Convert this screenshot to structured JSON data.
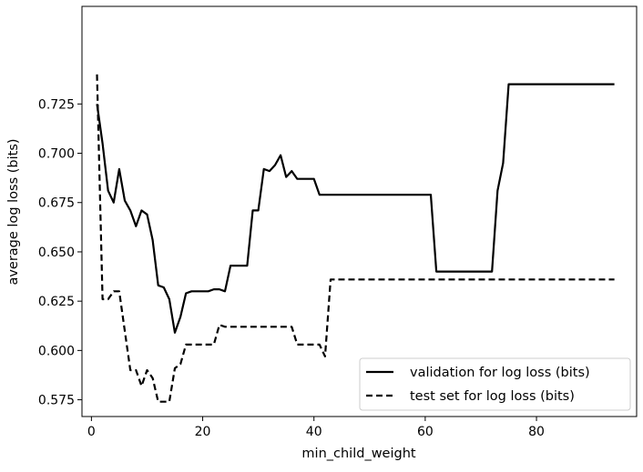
{
  "chart_data": {
    "type": "line",
    "xlabel": "min_child_weight",
    "ylabel": "average log loss (bits)",
    "xlim": [
      -1.7,
      98
    ],
    "ylim": [
      0.5665,
      0.7745
    ],
    "xticks": [
      0,
      20,
      40,
      60,
      80
    ],
    "xtick_labels": [
      "0",
      "20",
      "40",
      "60",
      "80"
    ],
    "yticks": [
      0.575,
      0.6,
      0.625,
      0.65,
      0.675,
      0.7,
      0.725
    ],
    "ytick_labels": [
      "0.575",
      "0.600",
      "0.625",
      "0.650",
      "0.675",
      "0.700",
      "0.725"
    ],
    "grid": false,
    "legend_position": "bottom-right",
    "series": [
      {
        "name": "validation for log loss (bits)",
        "style": "solid",
        "color": "#000000",
        "x": [
          1,
          2,
          3,
          4,
          5,
          6,
          7,
          8,
          9,
          10,
          11,
          12,
          13,
          14,
          15,
          16,
          17,
          18,
          19,
          20,
          21,
          22,
          23,
          24,
          25,
          26,
          27,
          28,
          29,
          30,
          31,
          32,
          33,
          34,
          35,
          36,
          37,
          38,
          39,
          40,
          41,
          42,
          43,
          44,
          45,
          46,
          47,
          48,
          49,
          50,
          51,
          52,
          53,
          54,
          55,
          56,
          57,
          58,
          59,
          60,
          61,
          62,
          63,
          64,
          65,
          66,
          67,
          68,
          69,
          70,
          71,
          72,
          73,
          74,
          75,
          76,
          77,
          78,
          79,
          80,
          81,
          82,
          83,
          84,
          85,
          86,
          87,
          88,
          89,
          90,
          91,
          92,
          93,
          94
        ],
        "values": [
          0.725,
          0.705,
          0.681,
          0.675,
          0.692,
          0.676,
          0.671,
          0.663,
          0.671,
          0.669,
          0.656,
          0.633,
          0.632,
          0.626,
          0.609,
          0.617,
          0.629,
          0.63,
          0.63,
          0.63,
          0.63,
          0.631,
          0.631,
          0.63,
          0.643,
          0.643,
          0.643,
          0.643,
          0.671,
          0.671,
          0.692,
          0.691,
          0.694,
          0.699,
          0.688,
          0.691,
          0.687,
          0.687,
          0.687,
          0.687,
          0.679,
          0.679,
          0.679,
          0.679,
          0.679,
          0.679,
          0.679,
          0.679,
          0.679,
          0.679,
          0.679,
          0.679,
          0.679,
          0.679,
          0.679,
          0.679,
          0.679,
          0.679,
          0.679,
          0.679,
          0.679,
          0.64,
          0.64,
          0.64,
          0.64,
          0.64,
          0.64,
          0.64,
          0.64,
          0.64,
          0.64,
          0.64,
          0.681,
          0.695,
          0.735,
          0.735,
          0.735,
          0.735,
          0.735,
          0.735,
          0.735,
          0.735,
          0.735,
          0.735,
          0.735,
          0.735,
          0.735,
          0.735,
          0.735,
          0.735,
          0.735,
          0.735,
          0.735,
          0.735
        ]
      },
      {
        "name": "test set for log loss (bits)",
        "style": "dashed",
        "color": "#000000",
        "x": [
          1,
          2,
          3,
          4,
          5,
          6,
          7,
          8,
          9,
          10,
          11,
          12,
          13,
          14,
          15,
          16,
          17,
          18,
          19,
          20,
          21,
          22,
          23,
          24,
          25,
          26,
          27,
          28,
          29,
          30,
          31,
          32,
          33,
          34,
          35,
          36,
          37,
          38,
          39,
          40,
          41,
          42,
          43,
          44,
          45,
          46,
          47,
          48,
          49,
          50,
          51,
          52,
          53,
          54,
          55,
          56,
          57,
          58,
          59,
          60,
          61,
          62,
          63,
          64,
          65,
          66,
          67,
          68,
          69,
          70,
          71,
          72,
          73,
          74,
          75,
          76,
          77,
          78,
          79,
          80,
          81,
          82,
          83,
          84,
          85,
          86,
          87,
          88,
          89,
          90,
          91,
          92,
          93,
          94
        ],
        "values": [
          0.74,
          0.626,
          0.626,
          0.63,
          0.63,
          0.61,
          0.59,
          0.59,
          0.582,
          0.59,
          0.586,
          0.574,
          0.574,
          0.574,
          0.591,
          0.593,
          0.603,
          0.603,
          0.603,
          0.603,
          0.603,
          0.603,
          0.613,
          0.612,
          0.612,
          0.612,
          0.612,
          0.612,
          0.612,
          0.612,
          0.612,
          0.612,
          0.612,
          0.612,
          0.612,
          0.612,
          0.603,
          0.603,
          0.603,
          0.603,
          0.603,
          0.597,
          0.636,
          0.636,
          0.636,
          0.636,
          0.636,
          0.636,
          0.636,
          0.636,
          0.636,
          0.636,
          0.636,
          0.636,
          0.636,
          0.636,
          0.636,
          0.636,
          0.636,
          0.636,
          0.636,
          0.636,
          0.636,
          0.636,
          0.636,
          0.636,
          0.636,
          0.636,
          0.636,
          0.636,
          0.636,
          0.636,
          0.636,
          0.636,
          0.636,
          0.636,
          0.636,
          0.636,
          0.636,
          0.636,
          0.636,
          0.636,
          0.636,
          0.636,
          0.636,
          0.636,
          0.636,
          0.636,
          0.636,
          0.636,
          0.636,
          0.636,
          0.636,
          0.636
        ]
      }
    ]
  }
}
